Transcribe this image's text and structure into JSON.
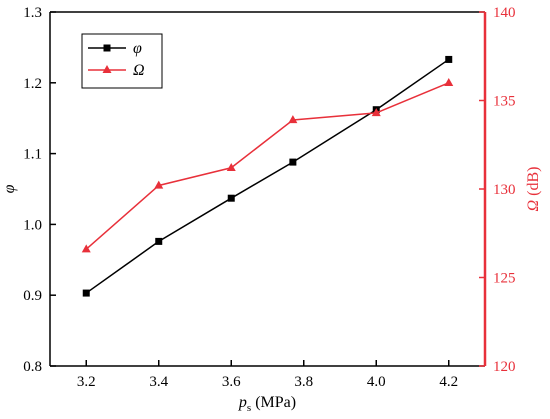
{
  "chart_data": {
    "type": "line",
    "xlabel": {
      "main": "p",
      "sub": "s",
      "unit": " (MPa)"
    },
    "ylabel_left": "φ",
    "ylabel_right": {
      "symbol": "Ω",
      "unit": " (dB)"
    },
    "xlim": [
      3.1,
      4.3
    ],
    "ylim_left": [
      0.8,
      1.3
    ],
    "ylim_right": [
      120,
      140
    ],
    "xticks": [
      "3.2",
      "3.4",
      "3.6",
      "3.8",
      "4.0",
      "4.2"
    ],
    "xtick_values": [
      3.2,
      3.4,
      3.6,
      3.8,
      4.0,
      4.2
    ],
    "yticks_left": [
      "0.8",
      "0.9",
      "1.0",
      "1.1",
      "1.2",
      "1.3"
    ],
    "ytick_values_left": [
      0.8,
      0.9,
      1.0,
      1.1,
      1.2,
      1.3
    ],
    "yticks_right": [
      "120",
      "125",
      "130",
      "135",
      "140"
    ],
    "ytick_values_right": [
      120,
      125,
      130,
      135,
      140
    ],
    "legend_position": "top-left",
    "grid": false,
    "series": [
      {
        "name": "φ",
        "axis": "left",
        "color": "#000000",
        "marker": "square",
        "x": [
          3.2,
          3.4,
          3.6,
          3.77,
          4.0,
          4.2
        ],
        "values": [
          0.903,
          0.976,
          1.037,
          1.088,
          1.162,
          1.233
        ]
      },
      {
        "name": "Ω",
        "axis": "right",
        "color": "#e8303a",
        "marker": "triangle",
        "x": [
          3.2,
          3.4,
          3.6,
          3.77,
          4.0,
          4.2
        ],
        "values": [
          126.6,
          130.2,
          131.2,
          133.9,
          134.3,
          136.0
        ]
      }
    ],
    "right_axis_color": "#e8303a"
  }
}
